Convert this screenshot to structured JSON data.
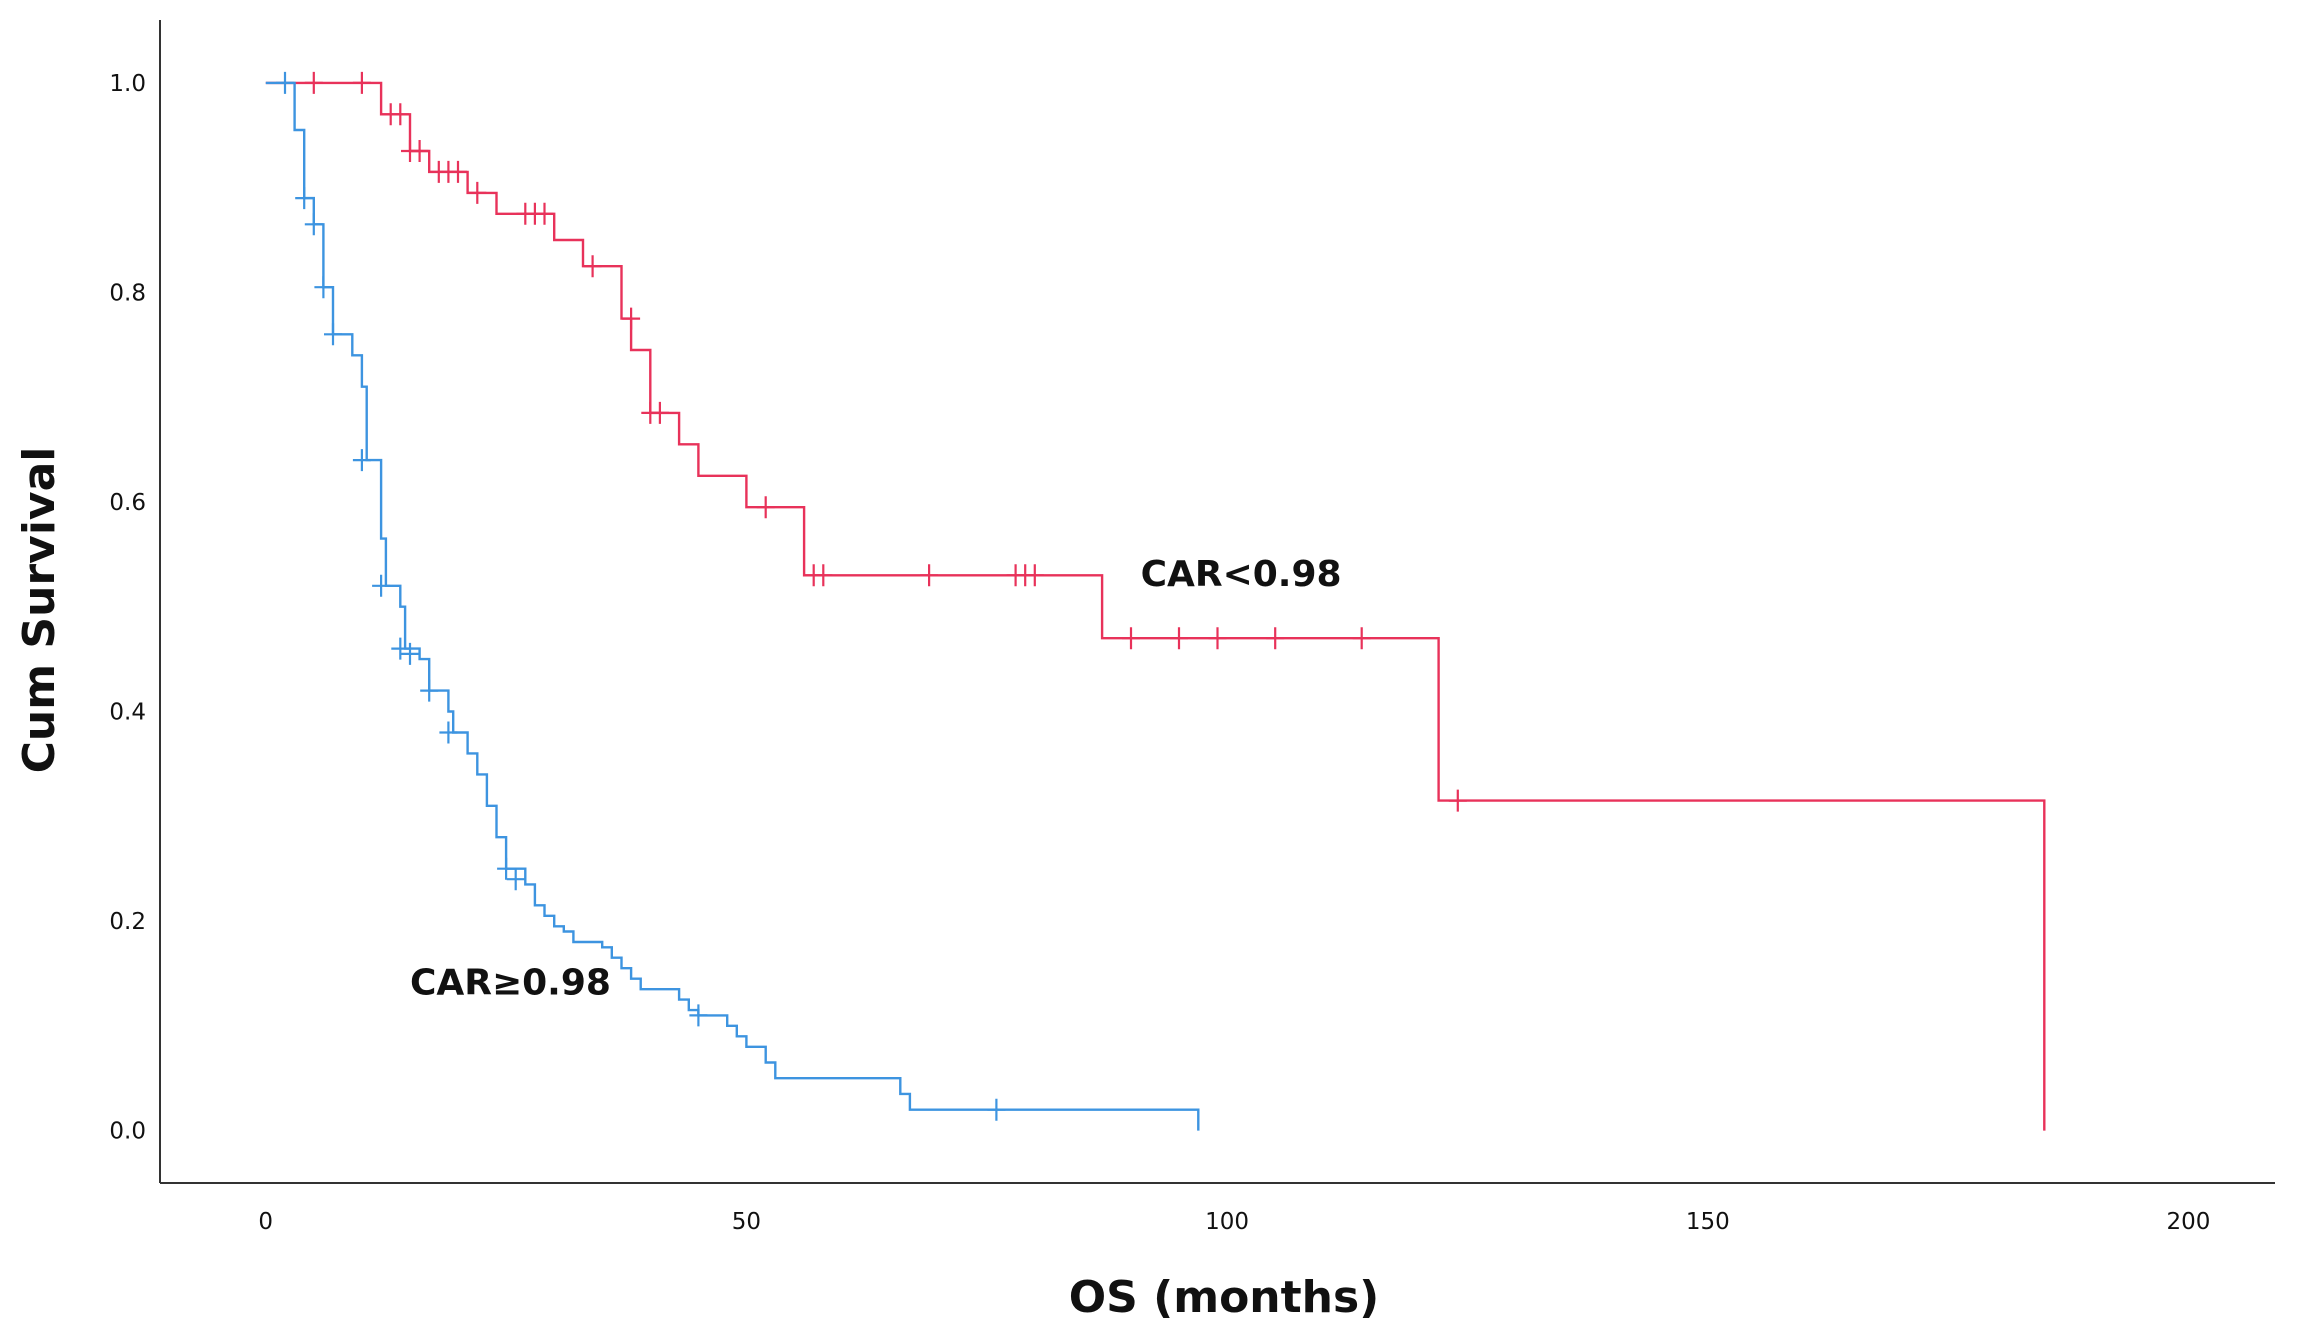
{
  "chart_data": {
    "type": "line",
    "subtype": "kaplan-meier",
    "title": "",
    "xlabel": "OS (months)",
    "ylabel": "Cum Survival",
    "xlim": [
      -11,
      209
    ],
    "ylim": [
      -0.05,
      1.06
    ],
    "xticks": [
      0,
      50,
      100,
      150,
      200
    ],
    "xtick_labels": [
      "0",
      "50",
      "100",
      "150",
      "200"
    ],
    "yticks": [
      0.0,
      0.2,
      0.4,
      0.6,
      0.8,
      1.0
    ],
    "ytick_labels": [
      "0.0",
      "0.2",
      "0.4",
      "0.6",
      "0.8",
      "1.0"
    ],
    "grid": false,
    "series": [
      {
        "name": "CAR<0.98",
        "label": "CAR<0.98",
        "color": "#e8325a",
        "steps": [
          [
            0,
            1.0
          ],
          [
            12,
            0.97
          ],
          [
            15,
            0.935
          ],
          [
            17,
            0.915
          ],
          [
            21,
            0.895
          ],
          [
            24,
            0.875
          ],
          [
            30,
            0.85
          ],
          [
            33,
            0.825
          ],
          [
            37,
            0.775
          ],
          [
            38,
            0.745
          ],
          [
            40,
            0.685
          ],
          [
            43,
            0.655
          ],
          [
            45,
            0.625
          ],
          [
            50,
            0.595
          ],
          [
            56,
            0.53
          ],
          [
            87,
            0.47
          ],
          [
            122,
            0.315
          ],
          [
            185,
            0.0
          ]
        ],
        "end": 185,
        "censored": [
          [
            5,
            1.0
          ],
          [
            10,
            1.0
          ],
          [
            13,
            0.97
          ],
          [
            14,
            0.97
          ],
          [
            15,
            0.935
          ],
          [
            16,
            0.935
          ],
          [
            18,
            0.915
          ],
          [
            19,
            0.915
          ],
          [
            20,
            0.915
          ],
          [
            22,
            0.895
          ],
          [
            27,
            0.875
          ],
          [
            28,
            0.875
          ],
          [
            29,
            0.875
          ],
          [
            34,
            0.825
          ],
          [
            38,
            0.775
          ],
          [
            40,
            0.685
          ],
          [
            41,
            0.685
          ],
          [
            52,
            0.595
          ],
          [
            57,
            0.53
          ],
          [
            58,
            0.53
          ],
          [
            69,
            0.53
          ],
          [
            78,
            0.53
          ],
          [
            79,
            0.53
          ],
          [
            80,
            0.53
          ],
          [
            90,
            0.47
          ],
          [
            95,
            0.47
          ],
          [
            99,
            0.47
          ],
          [
            105,
            0.47
          ],
          [
            114,
            0.47
          ],
          [
            124,
            0.315
          ]
        ],
        "label_anchor": [
          91,
          0.52
        ]
      },
      {
        "name": "CAR≥0.98",
        "label": "CAR≥0.98",
        "color": "#3d94e0",
        "steps": [
          [
            0,
            1.0
          ],
          [
            3,
            0.955
          ],
          [
            4,
            0.89
          ],
          [
            5,
            0.865
          ],
          [
            6,
            0.805
          ],
          [
            7,
            0.76
          ],
          [
            9,
            0.74
          ],
          [
            10,
            0.71
          ],
          [
            10.5,
            0.64
          ],
          [
            12,
            0.565
          ],
          [
            12.5,
            0.52
          ],
          [
            14,
            0.5
          ],
          [
            14.5,
            0.46
          ],
          [
            16,
            0.45
          ],
          [
            17,
            0.42
          ],
          [
            19,
            0.4
          ],
          [
            19.5,
            0.38
          ],
          [
            21,
            0.36
          ],
          [
            22,
            0.34
          ],
          [
            23,
            0.31
          ],
          [
            24,
            0.28
          ],
          [
            25,
            0.25
          ],
          [
            27,
            0.235
          ],
          [
            28,
            0.215
          ],
          [
            29,
            0.205
          ],
          [
            30,
            0.195
          ],
          [
            31,
            0.19
          ],
          [
            32,
            0.18
          ],
          [
            35,
            0.175
          ],
          [
            36,
            0.165
          ],
          [
            37,
            0.155
          ],
          [
            38,
            0.145
          ],
          [
            39,
            0.135
          ],
          [
            43,
            0.125
          ],
          [
            44,
            0.115
          ],
          [
            45,
            0.11
          ],
          [
            48,
            0.1
          ],
          [
            49,
            0.09
          ],
          [
            50,
            0.08
          ],
          [
            52,
            0.065
          ],
          [
            53,
            0.05
          ],
          [
            66,
            0.035
          ],
          [
            67,
            0.02
          ],
          [
            97,
            0.0
          ]
        ],
        "end": 97,
        "censored": [
          [
            2,
            1.0
          ],
          [
            4,
            0.89
          ],
          [
            5,
            0.865
          ],
          [
            6,
            0.805
          ],
          [
            7,
            0.76
          ],
          [
            10,
            0.64
          ],
          [
            12,
            0.52
          ],
          [
            14,
            0.46
          ],
          [
            15,
            0.455
          ],
          [
            17,
            0.42
          ],
          [
            19,
            0.38
          ],
          [
            25,
            0.25
          ],
          [
            26,
            0.24
          ],
          [
            45,
            0.11
          ],
          [
            76,
            0.02
          ]
        ],
        "label_anchor": [
          15,
          0.13
        ]
      }
    ]
  }
}
